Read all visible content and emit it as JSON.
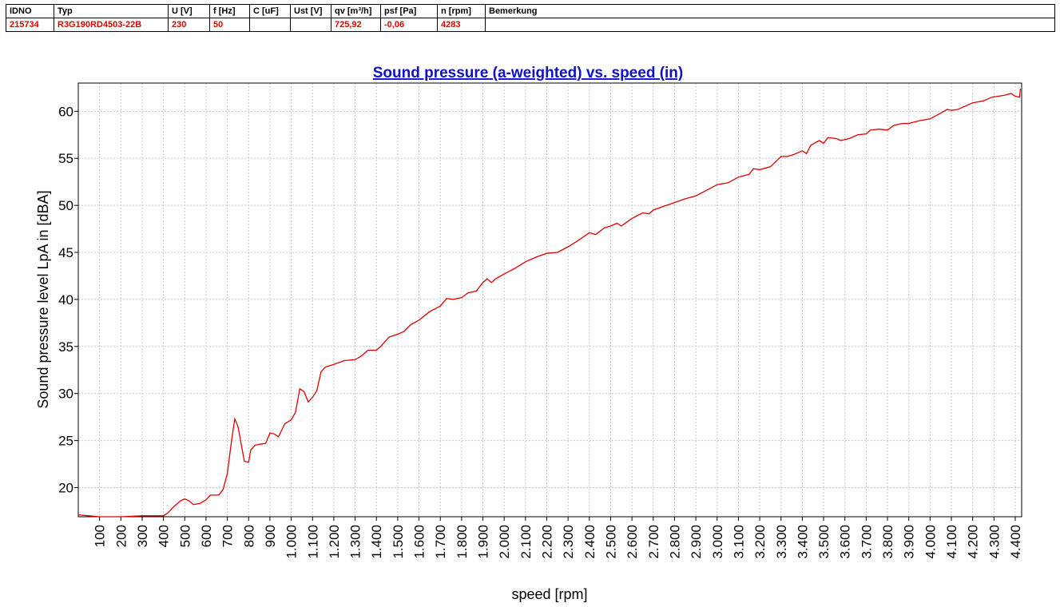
{
  "table": {
    "headers": [
      "IDNO",
      "Typ",
      "U [V]",
      "f [Hz]",
      "C [uF]",
      "Ust [V]",
      "qv [m³/h]",
      "psf [Pa]",
      "n [rpm]",
      "Bemerkung"
    ],
    "rows": [
      [
        "215734",
        "R3G190RD4503-22B",
        "230",
        "50",
        null,
        null,
        "725,92",
        "-0,06",
        "4283",
        null
      ]
    ]
  },
  "chart_data": {
    "type": "line",
    "title": "Sound pressure (a-weighted) vs. speed (in)",
    "x_label": "speed [rpm]",
    "y_label": "Sound pressure level LpA in [dBA]",
    "color": "#e00000",
    "grid": true,
    "xlim": [
      0,
      4430
    ],
    "ylim": [
      16.9,
      63
    ],
    "xticks": [
      100,
      200,
      300,
      400,
      500,
      600,
      700,
      800,
      900,
      {
        "value": 1000,
        "label": "1.000"
      },
      {
        "value": 1100,
        "label": "1.100"
      },
      {
        "value": 1200,
        "label": "1.200"
      },
      {
        "value": 1300,
        "label": "1.300"
      },
      {
        "value": 1400,
        "label": "1.400"
      },
      {
        "value": 1500,
        "label": "1.500"
      },
      {
        "value": 1600,
        "label": "1.600"
      },
      {
        "value": 1700,
        "label": "1.700"
      },
      {
        "value": 1800,
        "label": "1.800"
      },
      {
        "value": 1900,
        "label": "1.900"
      },
      {
        "value": 2000,
        "label": "2.000"
      },
      {
        "value": 2100,
        "label": "2.100"
      },
      {
        "value": 2200,
        "label": "2.200"
      },
      {
        "value": 2300,
        "label": "2.300"
      },
      {
        "value": 2400,
        "label": "2.400"
      },
      {
        "value": 2500,
        "label": "2.500"
      },
      {
        "value": 2600,
        "label": "2.600"
      },
      {
        "value": 2700,
        "label": "2.700"
      },
      {
        "value": 2800,
        "label": "2.800"
      },
      {
        "value": 2900,
        "label": "2.900"
      },
      {
        "value": 3000,
        "label": "3.000"
      },
      {
        "value": 3100,
        "label": "3.100"
      },
      {
        "value": 3200,
        "label": "3.200"
      },
      {
        "value": 3300,
        "label": "3.300"
      },
      {
        "value": 3400,
        "label": "3.400"
      },
      {
        "value": 3500,
        "label": "3.500"
      },
      {
        "value": 3600,
        "label": "3.600"
      },
      {
        "value": 3700,
        "label": "3.700"
      },
      {
        "value": 3800,
        "label": "3.800"
      },
      {
        "value": 3900,
        "label": "3.900"
      },
      {
        "value": 4000,
        "label": "4.000"
      },
      {
        "value": 4100,
        "label": "4.100"
      },
      {
        "value": 4200,
        "label": "4.200"
      },
      {
        "value": 4300,
        "label": "4.300"
      },
      {
        "value": 4400,
        "label": "4.400"
      }
    ],
    "yticks": [
      20,
      25,
      30,
      35,
      40,
      45,
      50,
      55,
      60
    ],
    "x": [
      0,
      50,
      100,
      200,
      300,
      400,
      420,
      450,
      480,
      500,
      520,
      540,
      570,
      600,
      620,
      660,
      680,
      700,
      720,
      735,
      750,
      770,
      780,
      800,
      810,
      830,
      850,
      880,
      900,
      920,
      940,
      970,
      1000,
      1020,
      1040,
      1060,
      1080,
      1100,
      1120,
      1140,
      1160,
      1200,
      1250,
      1300,
      1330,
      1360,
      1400,
      1420,
      1460,
      1500,
      1530,
      1560,
      1600,
      1650,
      1700,
      1730,
      1760,
      1800,
      1830,
      1870,
      1900,
      1920,
      1940,
      1960,
      2000,
      2050,
      2100,
      2150,
      2200,
      2250,
      2300,
      2350,
      2400,
      2430,
      2470,
      2500,
      2530,
      2550,
      2600,
      2650,
      2680,
      2700,
      2750,
      2800,
      2850,
      2900,
      2950,
      3000,
      3050,
      3100,
      3150,
      3170,
      3200,
      3250,
      3300,
      3330,
      3360,
      3400,
      3420,
      3440,
      3480,
      3500,
      3520,
      3560,
      3580,
      3620,
      3660,
      3700,
      3720,
      3760,
      3800,
      3830,
      3870,
      3900,
      3950,
      4000,
      4050,
      4080,
      4100,
      4130,
      4170,
      4200,
      4250,
      4290,
      4320,
      4350,
      4380,
      4400,
      4420,
      4424
    ],
    "values": [
      17.1,
      17.0,
      16.9,
      16.9,
      17.0,
      17.0,
      17.3,
      18.0,
      18.6,
      18.8,
      18.6,
      18.2,
      18.3,
      18.7,
      19.2,
      19.2,
      19.8,
      21.5,
      25.0,
      27.3,
      26.5,
      24.0,
      22.8,
      22.7,
      24.0,
      24.5,
      24.6,
      24.7,
      25.8,
      25.7,
      25.4,
      26.8,
      27.2,
      28.0,
      30.5,
      30.2,
      29.1,
      29.6,
      30.3,
      32.3,
      32.8,
      33.1,
      33.5,
      33.6,
      34.0,
      34.6,
      34.6,
      35.0,
      36.0,
      36.3,
      36.6,
      37.3,
      37.8,
      38.7,
      39.3,
      40.1,
      40.0,
      40.2,
      40.7,
      40.9,
      41.8,
      42.2,
      41.8,
      42.2,
      42.7,
      43.3,
      44.0,
      44.5,
      44.9,
      45.0,
      45.6,
      46.3,
      47.1,
      46.9,
      47.6,
      47.8,
      48.1,
      47.8,
      48.6,
      49.2,
      49.1,
      49.5,
      49.9,
      50.3,
      50.7,
      51.0,
      51.6,
      52.2,
      52.4,
      53.0,
      53.3,
      53.9,
      53.8,
      54.1,
      55.2,
      55.2,
      55.4,
      55.8,
      55.5,
      56.4,
      56.9,
      56.6,
      57.2,
      57.1,
      56.9,
      57.1,
      57.5,
      57.6,
      58.0,
      58.1,
      58.0,
      58.5,
      58.7,
      58.7,
      59.0,
      59.2,
      59.8,
      60.2,
      60.1,
      60.2,
      60.6,
      60.9,
      61.1,
      61.5,
      61.6,
      61.7,
      61.9,
      61.6,
      61.5,
      62.4
    ]
  }
}
